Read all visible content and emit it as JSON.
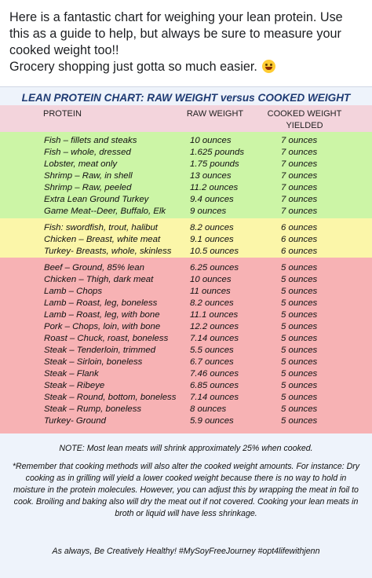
{
  "post": {
    "line1": "Here is a fantastic chart for weighing your lean protein. Use",
    "line2": "this as a guide to help, but always be sure to measure your",
    "line3": "cooked weight too!!",
    "line4": "Grocery shopping just gotta so much easier.",
    "emoji_icon": "grinning-squinting-face"
  },
  "chart": {
    "title": "LEAN PROTEIN CHART:  RAW WEIGHT versus COOKED WEIGHT YIELDED",
    "headers": {
      "protein": "PROTEIN",
      "raw": "RAW WEIGHT",
      "cooked_1": "COOKED WEIGHT",
      "cooked_2": "YIELDED"
    },
    "colors": {
      "header_band": "#f3d4dc",
      "green_band": "#ccf5a6",
      "yellow_band": "#fbf6a9",
      "red_band": "#f7b2b4",
      "title": "#1f3b73"
    },
    "green": [
      [
        "Fish – fillets and steaks",
        "10 ounces",
        "7 ounces"
      ],
      [
        "Fish – whole, dressed",
        "1.625 pounds",
        "7 ounces"
      ],
      [
        "Lobster, meat only",
        "1.75 pounds",
        "7 ounces"
      ],
      [
        "Shrimp – Raw, in shell",
        "13 ounces",
        "7 ounces"
      ],
      [
        "Shrimp – Raw, peeled",
        "11.2 ounces",
        "7 ounces"
      ],
      [
        "Extra Lean Ground Turkey",
        "9.4 ounces",
        "7 ounces"
      ],
      [
        "Game Meat--Deer, Buffalo, Elk",
        "9 ounces",
        "7 ounces"
      ]
    ],
    "yellow": [
      [
        "Fish: swordfish, trout, halibut",
        "8.2 ounces",
        "6 ounces"
      ],
      [
        "Chicken – Breast, white meat",
        "9.1 ounces",
        "6 ounces"
      ],
      [
        "Turkey- Breasts, whole, skinless",
        "10.5 ounces",
        "6 ounces"
      ]
    ],
    "red": [
      [
        "Beef – Ground, 85% lean",
        "6.25 ounces",
        "5 ounces"
      ],
      [
        "Chicken – Thigh, dark meat",
        "10 ounces",
        "5 ounces"
      ],
      [
        "Lamb – Chops",
        "11 ounces",
        "5 ounces"
      ],
      [
        "Lamb – Roast, leg, boneless",
        "8.2 ounces",
        "5 ounces"
      ],
      [
        "Lamb – Roast, leg, with bone",
        "11.1 ounces",
        "5 ounces"
      ],
      [
        "Pork – Chops, loin, with bone",
        "12.2 ounces",
        "5 ounces"
      ],
      [
        "Roast – Chuck, roast, boneless",
        "7.14 ounces",
        "5 ounces"
      ],
      [
        "Steak – Tenderloin, trimmed",
        "5.5 ounces",
        "5 ounces"
      ],
      [
        "Steak – Sirloin, boneless",
        "6.7 ounces",
        "5 ounces"
      ],
      [
        "Steak – Flank",
        "7.46 ounces",
        "5 ounces"
      ],
      [
        "Steak – Ribeye",
        "6.85 ounces",
        "5 ounces"
      ],
      [
        "Steak – Round, bottom, boneless",
        "7.14 ounces",
        "5 ounces"
      ],
      [
        "Steak – Rump, boneless",
        "8 ounces",
        "5 ounces"
      ],
      [
        "Turkey- Ground",
        "5.9 ounces",
        "5 ounces"
      ]
    ],
    "note": "NOTE:  Most lean meats will shrink approximately 25% when cooked.",
    "remember": "*Remember that cooking methods will also alter the cooked weight amounts. For instance: Dry cooking as in grilling will yield a lower cooked weight because there is no way to hold in moisture in the protein molecules. However, you can adjust this by wrapping the meat in foil to cook. Broiling and baking also will dry the meat out if not covered. Cooking your lean meats in broth or liquid will have less shrinkage.",
    "signoff": "As always, Be Creatively Healthy!  #MySoyFreeJourney  #opt4lifewithjenn"
  }
}
